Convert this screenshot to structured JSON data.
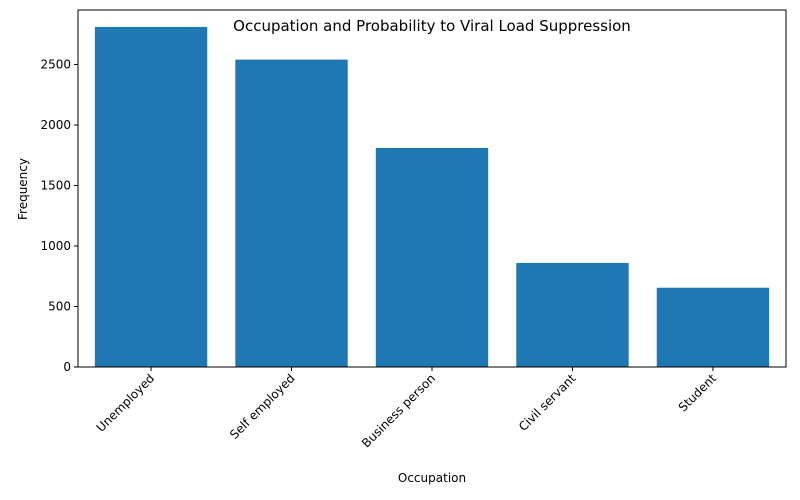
{
  "chart_data": {
    "type": "bar",
    "title": "Occupation and Probability to Viral Load Suppression",
    "xlabel": "Occupation",
    "ylabel": "Frequency",
    "categories": [
      "Unemployed",
      "Self employed",
      "Business person",
      "Civil servant",
      "Student"
    ],
    "values": [
      2810,
      2540,
      1810,
      860,
      655
    ],
    "ylim": [
      0,
      2950
    ],
    "yticks": [
      0,
      500,
      1000,
      1500,
      2000,
      2500
    ],
    "grid": false,
    "bar_color": "#1f77b4"
  }
}
